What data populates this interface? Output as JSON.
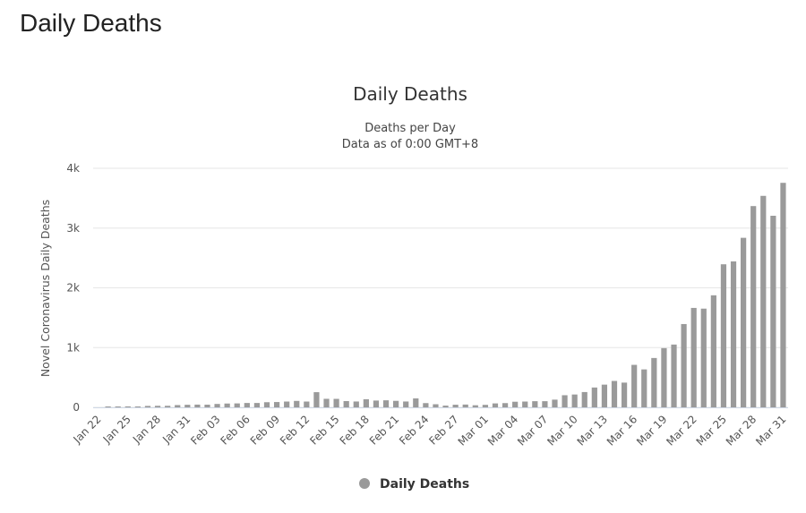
{
  "page": {
    "heading": "Daily Deaths"
  },
  "chart_data": {
    "type": "bar",
    "title": "Daily Deaths",
    "subtitle": [
      "Deaths per Day",
      "Data as of 0:00 GMT+8"
    ],
    "ylabel": "Novel Coronavirus Daily Deaths",
    "xlabel": "",
    "ylim": [
      0,
      4000
    ],
    "yticks": [
      {
        "value": 0,
        "label": "0"
      },
      {
        "value": 1000,
        "label": "1k"
      },
      {
        "value": 2000,
        "label": "2k"
      },
      {
        "value": 3000,
        "label": "3k"
      },
      {
        "value": 4000,
        "label": "4k"
      }
    ],
    "grid": true,
    "legend": "bottom-center",
    "categories": [
      "Jan 22",
      "Jan 23",
      "Jan 24",
      "Jan 25",
      "Jan 26",
      "Jan 27",
      "Jan 28",
      "Jan 29",
      "Jan 30",
      "Jan 31",
      "Feb 01",
      "Feb 02",
      "Feb 03",
      "Feb 04",
      "Feb 05",
      "Feb 06",
      "Feb 07",
      "Feb 08",
      "Feb 09",
      "Feb 10",
      "Feb 11",
      "Feb 12",
      "Feb 13",
      "Feb 14",
      "Feb 15",
      "Feb 16",
      "Feb 17",
      "Feb 18",
      "Feb 19",
      "Feb 20",
      "Feb 21",
      "Feb 22",
      "Feb 23",
      "Feb 24",
      "Feb 25",
      "Feb 26",
      "Feb 27",
      "Feb 28",
      "Feb 29",
      "Mar 01",
      "Mar 02",
      "Mar 03",
      "Mar 04",
      "Mar 05",
      "Mar 06",
      "Mar 07",
      "Mar 08",
      "Mar 09",
      "Mar 10",
      "Mar 11",
      "Mar 12",
      "Mar 13",
      "Mar 14",
      "Mar 15",
      "Mar 16",
      "Mar 17",
      "Mar 18",
      "Mar 19",
      "Mar 20",
      "Mar 21",
      "Mar 22",
      "Mar 23",
      "Mar 24",
      "Mar 25",
      "Mar 26",
      "Mar 27",
      "Mar 28",
      "Mar 29",
      "Mar 30",
      "Mar 31"
    ],
    "tick_labels_every": 3,
    "series": [
      {
        "name": "Daily Deaths",
        "color": "#9a9a9a",
        "values": [
          0,
          1,
          8,
          16,
          15,
          24,
          26,
          26,
          38,
          43,
          46,
          45,
          57,
          64,
          66,
          73,
          73,
          86,
          89,
          97,
          108,
          97,
          254,
          143,
          142,
          105,
          98,
          136,
          114,
          118,
          109,
          98,
          150,
          71,
          52,
          29,
          44,
          47,
          35,
          42,
          66,
          71,
          94,
          97,
          103,
          103,
          129,
          203,
          215,
          256,
          332,
          380,
          442,
          414,
          711,
          635,
          826,
          991,
          1051,
          1394,
          1664,
          1652,
          1875,
          2394,
          2442,
          2837,
          3368,
          3539,
          3206,
          3757
        ]
      }
    ]
  }
}
